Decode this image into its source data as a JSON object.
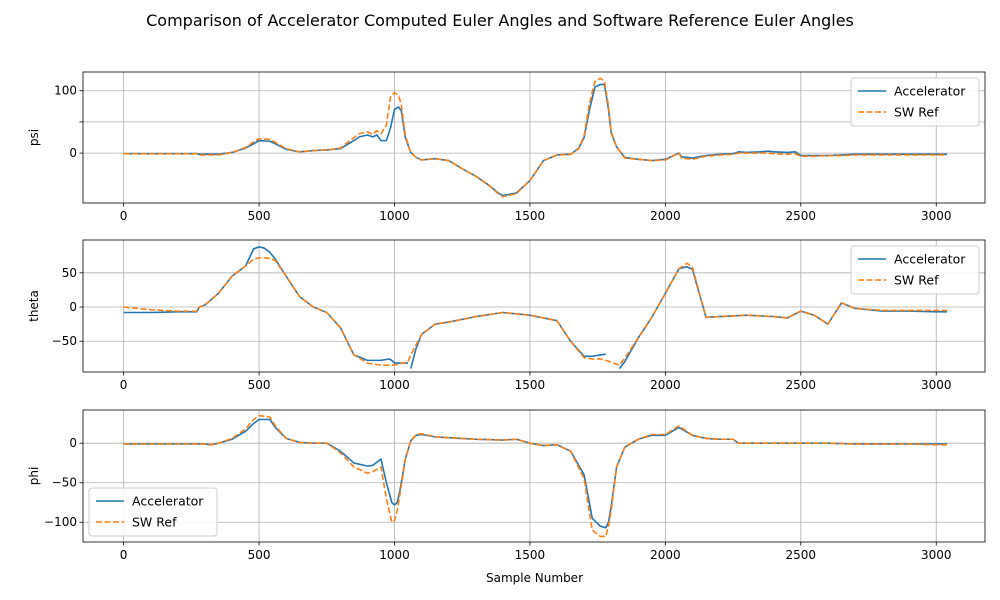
{
  "figure": {
    "title": "Comparison of Accelerator Computed Euler Angles and Software Reference Euler Angles",
    "xlabel": "Sample Number"
  },
  "colors": {
    "accelerator": "#1f77b4",
    "sw_ref": "#ff7f0e",
    "grid": "#b0b0b0",
    "legend_border": "#cccccc"
  },
  "chart_data": [
    {
      "type": "line",
      "ylabel": "psi",
      "xlim": [
        -150,
        3180
      ],
      "ylim": [
        -80,
        130
      ],
      "xticks": [
        0,
        500,
        1000,
        1500,
        2000,
        2500,
        3000
      ],
      "yticks": [
        0,
        50,
        100
      ],
      "ytick_labels": [
        "0",
        "",
        "100"
      ],
      "grid": true,
      "legend": {
        "placement": "upper right",
        "entries": [
          "Accelerator",
          "SW Ref"
        ]
      },
      "series": [
        {
          "name": "Accelerator",
          "style": "solid",
          "x": [
            0,
            100,
            200,
            270,
            280,
            300,
            350,
            400,
            450,
            480,
            500,
            540,
            560,
            600,
            650,
            700,
            750,
            800,
            850,
            870,
            900,
            920,
            935,
            950,
            970,
            985,
            1000,
            1015,
            1025,
            1040,
            1060,
            1080,
            1100,
            1150,
            1200,
            1250,
            1300,
            1350,
            1380,
            1400,
            1450,
            1500,
            1550,
            1600,
            1650,
            1680,
            1700,
            1720,
            1740,
            1760,
            1775,
            1790,
            1800,
            1820,
            1850,
            1900,
            1950,
            2000,
            2050,
            2060,
            2100,
            2150,
            2200,
            2250,
            2270,
            2300,
            2350,
            2380,
            2400,
            2450,
            2480,
            2500,
            2550,
            2600,
            2650,
            2700,
            2800,
            2900,
            3000,
            3040
          ],
          "y": [
            -1,
            -1,
            -1,
            -1,
            -2,
            -2,
            -2,
            1,
            8,
            15,
            20,
            19,
            15,
            6,
            2,
            4,
            5,
            7,
            20,
            26,
            29,
            26,
            29,
            20,
            20,
            40,
            70,
            74,
            68,
            25,
            1,
            -7,
            -11,
            -9,
            -12,
            -25,
            -37,
            -52,
            -63,
            -68,
            -64,
            -44,
            -12,
            -3,
            -2,
            8,
            25,
            70,
            106,
            110,
            110,
            70,
            32,
            10,
            -7,
            -10,
            -12,
            -10,
            0,
            -6,
            -8,
            -4,
            -2,
            -1,
            2,
            1,
            2,
            3,
            2,
            1,
            2,
            -4,
            -4,
            -4,
            -3,
            -2,
            -2,
            -2,
            -2,
            -2
          ]
        },
        {
          "name": "SW Ref",
          "style": "dashed",
          "x": [
            0,
            100,
            200,
            270,
            280,
            300,
            350,
            400,
            450,
            480,
            500,
            540,
            560,
            600,
            650,
            700,
            750,
            800,
            850,
            870,
            900,
            920,
            935,
            950,
            970,
            985,
            1000,
            1015,
            1025,
            1040,
            1060,
            1080,
            1100,
            1150,
            1200,
            1250,
            1300,
            1350,
            1380,
            1400,
            1450,
            1500,
            1550,
            1600,
            1650,
            1680,
            1700,
            1720,
            1740,
            1760,
            1775,
            1790,
            1800,
            1820,
            1850,
            1900,
            1950,
            2000,
            2050,
            2060,
            2100,
            2150,
            2200,
            2250,
            2270,
            2300,
            2350,
            2380,
            2400,
            2450,
            2480,
            2500,
            2550,
            2600,
            2650,
            2700,
            2800,
            2900,
            3000,
            3040
          ],
          "y": [
            -1,
            -1,
            -1,
            -1,
            -3,
            -3,
            -3,
            1,
            9,
            18,
            23,
            22,
            17,
            7,
            2,
            4,
            5,
            8,
            25,
            31,
            34,
            30,
            36,
            31,
            45,
            90,
            97,
            92,
            78,
            28,
            1,
            -7,
            -11,
            -9,
            -12,
            -25,
            -37,
            -52,
            -64,
            -70,
            -65,
            -44,
            -12,
            -3,
            -2,
            7,
            28,
            80,
            115,
            120,
            115,
            75,
            34,
            10,
            -8,
            -10,
            -12,
            -11,
            0,
            -8,
            -10,
            -5,
            -3,
            -2,
            0,
            0,
            0,
            0,
            -1,
            -2,
            -1,
            -5,
            -5,
            -4,
            -4,
            -3,
            -3,
            -3,
            -3,
            -3
          ]
        }
      ]
    },
    {
      "type": "line",
      "ylabel": "theta",
      "xlim": [
        -150,
        3180
      ],
      "ylim": [
        -95,
        98
      ],
      "xticks": [
        0,
        500,
        1000,
        1500,
        2000,
        2500,
        3000
      ],
      "yticks": [
        -50,
        0,
        50
      ],
      "ytick_labels": [
        "−50",
        "0",
        "50"
      ],
      "grid": true,
      "legend": {
        "placement": "upper right",
        "entries": [
          "Accelerator",
          "SW Ref"
        ]
      },
      "series": [
        {
          "name": "Accelerator",
          "style": "solid",
          "x": [
            0,
            100,
            200,
            270,
            280,
            300,
            350,
            400,
            450,
            480,
            500,
            520,
            540,
            560,
            600,
            650,
            700,
            750,
            800,
            850,
            900,
            950,
            980,
            990,
            1000,
            1050,
            null,
            1060,
            1080,
            1100,
            1150,
            1200,
            1300,
            1400,
            1500,
            1600,
            1650,
            1700,
            1730,
            1760,
            1780,
            null,
            1830,
            1850,
            1900,
            1950,
            2000,
            2050,
            2080,
            2100,
            2150,
            2200,
            2300,
            2400,
            2450,
            2500,
            2550,
            2600,
            2650,
            2700,
            2800,
            2900,
            3000,
            3040
          ],
          "y": [
            -8,
            -8,
            -7,
            -7,
            0,
            3,
            20,
            45,
            60,
            85,
            88,
            86,
            80,
            70,
            45,
            15,
            0,
            -8,
            -30,
            -70,
            -78,
            -78,
            -76,
            -78,
            -82,
            -82,
            null,
            -90,
            -60,
            -40,
            -25,
            -22,
            -14,
            -8,
            -12,
            -20,
            -50,
            -72,
            -72,
            -70,
            -69,
            null,
            -90,
            -80,
            -45,
            -15,
            20,
            56,
            59,
            55,
            -15,
            -14,
            -12,
            -14,
            -16,
            -6,
            -12,
            -25,
            6,
            -2,
            -6,
            -6,
            -7,
            -7
          ]
        },
        {
          "name": "SW Ref",
          "style": "dashed",
          "x": [
            0,
            100,
            200,
            270,
            280,
            300,
            350,
            400,
            450,
            480,
            500,
            520,
            540,
            560,
            600,
            650,
            700,
            750,
            800,
            850,
            900,
            950,
            980,
            990,
            1000,
            1050,
            1060,
            1080,
            1100,
            1150,
            1200,
            1300,
            1400,
            1500,
            1600,
            1650,
            1700,
            1730,
            1760,
            1780,
            1830,
            1850,
            1900,
            1950,
            2000,
            2050,
            2080,
            2100,
            2150,
            2200,
            2300,
            2400,
            2450,
            2500,
            2550,
            2600,
            2650,
            2700,
            2800,
            2900,
            3000,
            3040
          ],
          "y": [
            0,
            -4,
            -6,
            -6,
            0,
            3,
            20,
            45,
            60,
            70,
            72,
            72,
            71,
            68,
            45,
            15,
            0,
            -8,
            -30,
            -70,
            -82,
            -85,
            -85,
            -85,
            -85,
            -80,
            -70,
            -55,
            -40,
            -25,
            -22,
            -14,
            -8,
            -12,
            -20,
            -50,
            -74,
            -76,
            -76,
            -78,
            -85,
            -75,
            -45,
            -15,
            20,
            56,
            64,
            58,
            -15,
            -14,
            -12,
            -14,
            -16,
            -6,
            -12,
            -25,
            6,
            -2,
            -5,
            -5,
            -5,
            -5
          ]
        }
      ]
    },
    {
      "type": "line",
      "ylabel": "phi",
      "xlim": [
        -150,
        3180
      ],
      "ylim": [
        -125,
        42
      ],
      "xticks": [
        0,
        500,
        1000,
        1500,
        2000,
        2500,
        3000
      ],
      "yticks": [
        -100,
        -50,
        0
      ],
      "ytick_labels": [
        "−100",
        "−50",
        "0"
      ],
      "grid": true,
      "legend": {
        "placement": "lower left",
        "entries": [
          "Accelerator",
          "SW Ref"
        ]
      },
      "series": [
        {
          "name": "Accelerator",
          "style": "solid",
          "x": [
            0,
            100,
            200,
            300,
            320,
            350,
            400,
            450,
            480,
            500,
            540,
            560,
            600,
            650,
            700,
            750,
            800,
            850,
            900,
            920,
            950,
            970,
            990,
            1000,
            1010,
            1020,
            1040,
            1060,
            1080,
            1100,
            1150,
            1200,
            1300,
            1400,
            1450,
            1500,
            1550,
            1600,
            1650,
            1700,
            1730,
            1760,
            1780,
            1790,
            1800,
            1820,
            1850,
            1900,
            1950,
            2000,
            2050,
            2100,
            2150,
            2200,
            2250,
            2270,
            2300,
            2400,
            2500,
            2600,
            2700,
            2800,
            2900,
            3000,
            3040
          ],
          "y": [
            -1,
            -1,
            -1,
            -1,
            -2,
            0,
            5,
            15,
            25,
            30,
            30,
            20,
            6,
            1,
            0,
            0,
            -10,
            -25,
            -29,
            -28,
            -20,
            -50,
            -75,
            -78,
            -75,
            -60,
            -20,
            3,
            10,
            11,
            8,
            7,
            5,
            4,
            5,
            0,
            -3,
            -2,
            -10,
            -40,
            -95,
            -105,
            -107,
            -100,
            -80,
            -30,
            -5,
            5,
            10,
            10,
            20,
            10,
            6,
            5,
            5,
            0,
            0,
            0,
            0,
            0,
            -1,
            -1,
            -1,
            -1,
            -1
          ]
        },
        {
          "name": "SW Ref",
          "style": "dashed",
          "x": [
            0,
            100,
            200,
            300,
            320,
            350,
            400,
            450,
            480,
            500,
            540,
            560,
            600,
            650,
            700,
            750,
            800,
            850,
            900,
            920,
            950,
            970,
            990,
            1000,
            1010,
            1020,
            1040,
            1060,
            1080,
            1100,
            1150,
            1200,
            1300,
            1400,
            1450,
            1500,
            1550,
            1600,
            1650,
            1700,
            1730,
            1760,
            1780,
            1790,
            1800,
            1820,
            1850,
            1900,
            1950,
            2000,
            2050,
            2100,
            2150,
            2200,
            2250,
            2270,
            2300,
            2400,
            2500,
            2600,
            2700,
            2800,
            2900,
            3000,
            3040
          ],
          "y": [
            -1,
            -1,
            -1,
            -1,
            -2,
            0,
            6,
            18,
            30,
            35,
            33,
            22,
            6,
            1,
            0,
            0,
            -12,
            -30,
            -38,
            -36,
            -30,
            -70,
            -100,
            -98,
            -85,
            -65,
            -20,
            3,
            11,
            12,
            8,
            7,
            5,
            4,
            5,
            0,
            -3,
            -2,
            -10,
            -45,
            -110,
            -118,
            -118,
            -105,
            -85,
            -30,
            -5,
            5,
            11,
            11,
            22,
            10,
            6,
            5,
            5,
            0,
            0,
            0,
            0,
            0,
            -1,
            -1,
            -1,
            -2,
            -2
          ]
        }
      ]
    }
  ]
}
